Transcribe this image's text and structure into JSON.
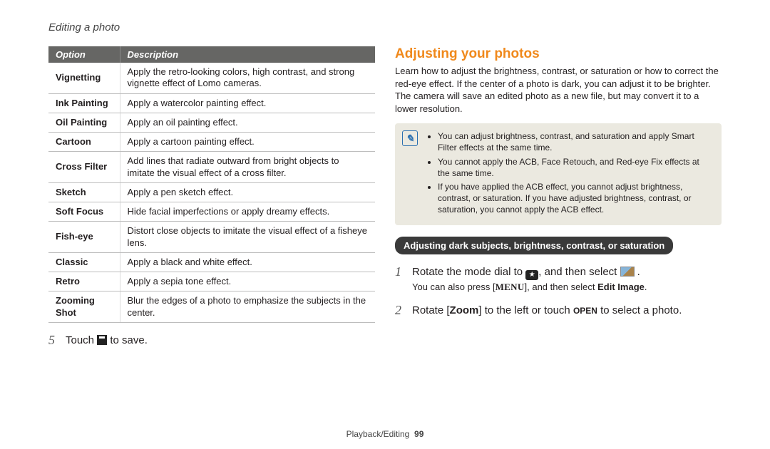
{
  "breadcrumb": "Editing a photo",
  "table": {
    "headers": [
      "Option",
      "Description"
    ],
    "rows": [
      [
        "Vignetting",
        "Apply the retro-looking colors, high contrast, and strong vignette effect of Lomo cameras."
      ],
      [
        "Ink Painting",
        "Apply a watercolor painting effect."
      ],
      [
        "Oil Painting",
        "Apply an oil painting effect."
      ],
      [
        "Cartoon",
        "Apply a cartoon painting effect."
      ],
      [
        "Cross Filter",
        "Add lines that radiate outward from bright objects to imitate the visual effect of a cross filter."
      ],
      [
        "Sketch",
        "Apply a pen sketch effect."
      ],
      [
        "Soft Focus",
        "Hide facial imperfections or apply dreamy effects."
      ],
      [
        "Fish-eye",
        "Distort close objects to imitate the visual effect of a fisheye lens."
      ],
      [
        "Classic",
        "Apply a black and white effect."
      ],
      [
        "Retro",
        "Apply a sepia tone effect."
      ],
      [
        "Zooming Shot",
        "Blur the edges of a photo to emphasize the subjects in the center."
      ]
    ]
  },
  "left_step": {
    "num": "5",
    "pre": "Touch ",
    "post": " to save."
  },
  "right": {
    "title": "Adjusting your photos",
    "intro": "Learn how to adjust the brightness, contrast, or saturation or how to correct the red-eye effect. If the center of a photo is dark, you can adjust it to be brighter. The camera will save an edited photo as a new file, but may convert it to a lower resolution.",
    "notes": [
      "You can adjust brightness, contrast, and saturation and apply Smart Filter effects at the same time.",
      "You cannot apply the ACB, Face Retouch, and Red-eye Fix effects at the same time.",
      "If you have applied the ACB effect, you cannot adjust brightness, contrast, or saturation. If you have adjusted brightness, contrast, or saturation, you cannot apply the ACB effect."
    ],
    "sub_heading": "Adjusting dark subjects, brightness, contrast, or saturation",
    "step1": {
      "num": "1",
      "pre": "Rotate the mode dial to ",
      "mid": ", and then select ",
      "post": " .",
      "sub_pre": "You can also press [",
      "sub_menu": "MENU",
      "sub_mid": "], and then select ",
      "sub_bold": "Edit Image",
      "sub_end": "."
    },
    "step2": {
      "num": "2",
      "pre": "Rotate [",
      "zoom": "Zoom",
      "mid": "] to the left or touch ",
      "open": "OPEN",
      "post": " to select a photo."
    }
  },
  "footer": {
    "section": "Playback/Editing",
    "page": "99"
  }
}
